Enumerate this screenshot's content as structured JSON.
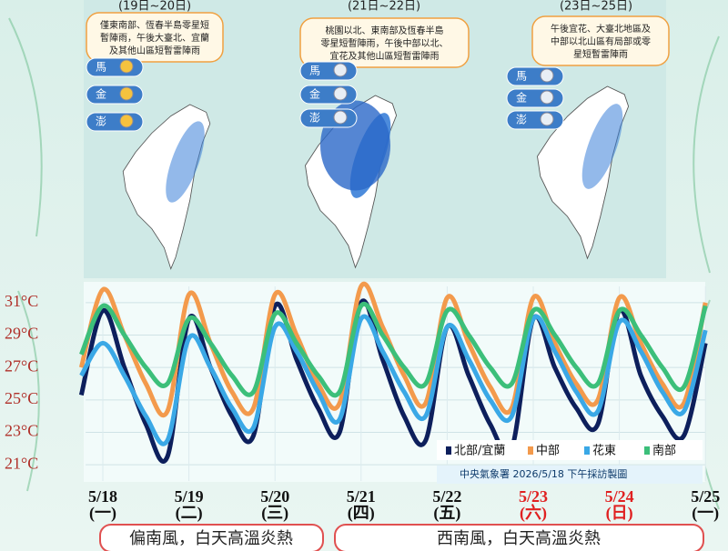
{
  "panels": [
    {
      "date": "(19日~20日)",
      "lines": [
        "僅東南部、恆春半島零星短",
        "暫陣雨，午後大臺北、宜蘭",
        "及其他山區短暫雷陣雨"
      ],
      "stations": [
        "馬",
        "金",
        "澎"
      ]
    },
    {
      "date": "(21日~22日)",
      "lines": [
        "桃園以北、東南部及恆春半島",
        "零星短暫陣雨，午後中部以北、",
        "宜花及其他山區短暫雷陣雨"
      ],
      "stations": [
        "馬",
        "金",
        "澎"
      ]
    },
    {
      "date": "(23日~25日)",
      "lines": [
        "午後宜花、大臺北地區及",
        "中部以北山區有局部或零",
        "星短暫雷陣雨"
      ],
      "stations": [
        "馬",
        "金",
        "澎"
      ]
    }
  ],
  "banners": [
    "偏南風，白天高溫炎熱",
    "西南風，白天高溫炎熱"
  ],
  "chart_data": {
    "type": "line",
    "source": "中央氣象署  2026/5/18 下午採訪製圖",
    "x": [
      -0.25,
      0,
      0.25,
      0.5,
      0.75,
      1,
      1.25,
      1.5,
      1.75,
      2,
      2.25,
      2.5,
      2.75,
      3,
      3.25,
      3.5,
      3.75,
      4,
      4.25,
      4.5,
      4.75,
      5,
      5.25,
      5.5,
      5.75,
      6,
      6.25,
      6.5,
      6.75,
      7
    ],
    "series": [
      {
        "name": "北部/宜蘭",
        "color": "#0d1f5c",
        "values": [
          25.3,
          30.5,
          27,
          23.5,
          21.5,
          30,
          27,
          24,
          22.8,
          30.8,
          27.5,
          24.5,
          23,
          31,
          27.5,
          24,
          22.5,
          29.5,
          26.5,
          23.5,
          22,
          30,
          27,
          24.5,
          23.5,
          30.5,
          26.5,
          24,
          22.8,
          28.5
        ]
      },
      {
        "name": "中部",
        "color": "#f39a4c",
        "values": [
          27,
          31.8,
          29,
          26,
          24.3,
          31.5,
          28.5,
          25.5,
          24.5,
          31.5,
          29,
          26,
          24.8,
          32,
          29.5,
          26.5,
          24.8,
          31.3,
          28.5,
          25.8,
          24.5,
          31.3,
          28.5,
          26,
          25,
          31.3,
          28.5,
          26,
          24.8,
          31
        ]
      },
      {
        "name": "花東",
        "color": "#3aa8e6",
        "values": [
          26.5,
          28.5,
          26.5,
          24,
          22.5,
          28.8,
          27,
          24.5,
          23.3,
          29.5,
          28,
          25.5,
          23.8,
          30,
          28,
          25.5,
          24,
          29.5,
          27.5,
          25,
          24,
          30,
          28,
          25.5,
          24.3,
          29.8,
          28,
          25.5,
          24.3,
          29.3
        ]
      },
      {
        "name": "南部",
        "color": "#3cbf7a",
        "values": [
          27.8,
          30.8,
          29,
          27,
          26,
          30,
          28.5,
          26.5,
          25.5,
          30.3,
          28.5,
          26.5,
          25.5,
          30.8,
          29,
          27,
          26,
          30.5,
          29,
          27,
          26,
          30.5,
          29,
          27,
          26,
          30.5,
          29,
          27,
          25.8,
          30.8
        ]
      }
    ],
    "xlim": [
      -0.2,
      7
    ],
    "xticks": [
      {
        "value": 0,
        "label": "5/18"
      },
      {
        "value": 1,
        "label": "5/19"
      },
      {
        "value": 2,
        "label": "5/20"
      },
      {
        "value": 3,
        "label": "5/21"
      },
      {
        "value": 4,
        "label": "5/22"
      },
      {
        "value": 5,
        "label": "5/23"
      },
      {
        "value": 6,
        "label": "5/24"
      },
      {
        "value": 7,
        "label": "5/25"
      }
    ],
    "x_sublabels": [
      "(一)",
      "(二)",
      "(三)",
      "(四)",
      "(五)",
      "(六)",
      "(日)",
      "(一)"
    ],
    "x_label_colors": [
      "#111111",
      "#111111",
      "#111111",
      "#111111",
      "#111111",
      "#e02020",
      "#e02020",
      "#111111"
    ],
    "ylim": [
      20,
      32
    ],
    "yticks": [
      {
        "value": 21,
        "label": "21°C"
      },
      {
        "value": 23,
        "label": "23°C"
      },
      {
        "value": 25,
        "label": "25°C"
      },
      {
        "value": 27,
        "label": "27°C"
      },
      {
        "value": 29,
        "label": "29°C"
      },
      {
        "value": 31,
        "label": "31°C"
      }
    ],
    "grid": true
  }
}
